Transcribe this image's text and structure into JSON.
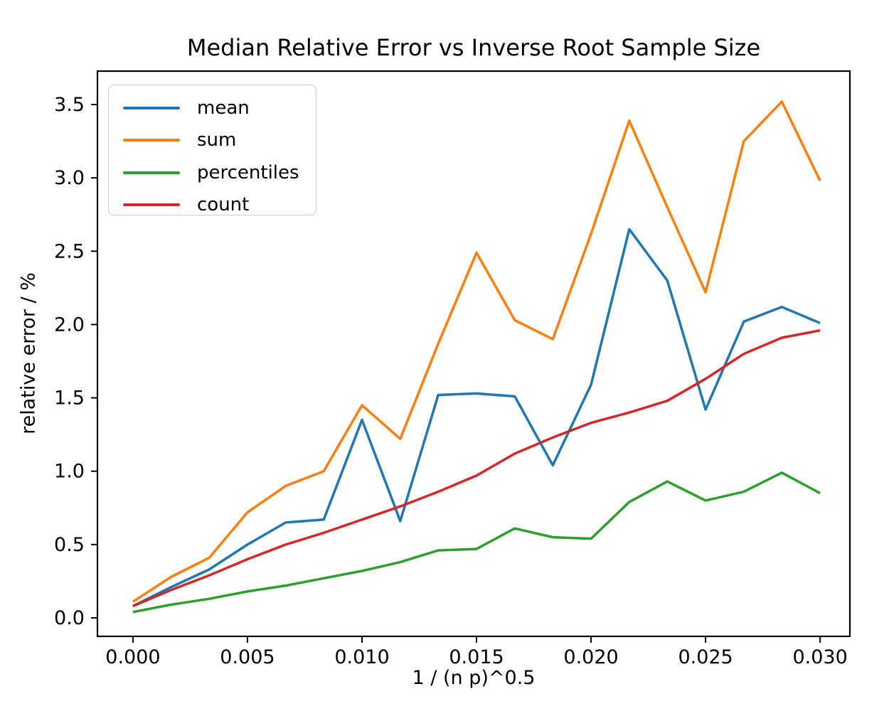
{
  "chart_data": {
    "type": "line",
    "title": "Median Relative Error vs Inverse Root Sample Size",
    "xlabel": "1 / (n p)^0.5",
    "ylabel": "relative error / %",
    "grid": false,
    "legend_position": "upper left",
    "xlim": [
      -0.00155,
      0.0313
    ],
    "ylim": [
      -0.126,
      3.728
    ],
    "xticks": [
      0.0,
      0.005,
      0.01,
      0.015,
      0.02,
      0.025,
      0.03
    ],
    "xtick_labels": [
      "0.000",
      "0.005",
      "0.010",
      "0.015",
      "0.020",
      "0.025",
      "0.030"
    ],
    "yticks": [
      0.0,
      0.5,
      1.0,
      1.5,
      2.0,
      2.5,
      3.0,
      3.5
    ],
    "ytick_labels": [
      "0.0",
      "0.5",
      "1.0",
      "1.5",
      "2.0",
      "2.5",
      "3.0",
      "3.5"
    ],
    "x": [
      0.0,
      0.00167,
      0.00333,
      0.005,
      0.00667,
      0.00833,
      0.01,
      0.01167,
      0.01333,
      0.015,
      0.01667,
      0.01833,
      0.02,
      0.02167,
      0.02333,
      0.025,
      0.02667,
      0.02833,
      0.03
    ],
    "series": [
      {
        "name": "mean",
        "color": "#1f77b4",
        "values": [
          0.08,
          0.21,
          0.33,
          0.5,
          0.65,
          0.67,
          1.35,
          0.66,
          1.52,
          1.53,
          1.51,
          1.04,
          1.59,
          2.65,
          2.3,
          1.42,
          2.02,
          2.12,
          2.01
        ]
      },
      {
        "name": "sum",
        "color": "#ff7f0e",
        "values": [
          0.11,
          0.28,
          0.41,
          0.72,
          0.9,
          1.0,
          1.45,
          1.22,
          1.87,
          2.49,
          2.03,
          1.9,
          2.62,
          3.39,
          2.8,
          2.22,
          3.25,
          3.52,
          2.98
        ]
      },
      {
        "name": "percentiles",
        "color": "#2ca02c",
        "values": [
          0.04,
          0.09,
          0.13,
          0.18,
          0.22,
          0.27,
          0.32,
          0.38,
          0.46,
          0.47,
          0.61,
          0.55,
          0.54,
          0.79,
          0.93,
          0.8,
          0.86,
          0.99,
          0.85
        ]
      },
      {
        "name": "count",
        "color": "#d62728",
        "values": [
          0.08,
          0.19,
          0.29,
          0.4,
          0.5,
          0.58,
          0.67,
          0.76,
          0.86,
          0.97,
          1.12,
          1.23,
          1.33,
          1.4,
          1.48,
          1.63,
          1.8,
          1.91,
          1.96
        ]
      }
    ],
    "axis_color": "#000000",
    "tick_label_color": "#000000"
  }
}
